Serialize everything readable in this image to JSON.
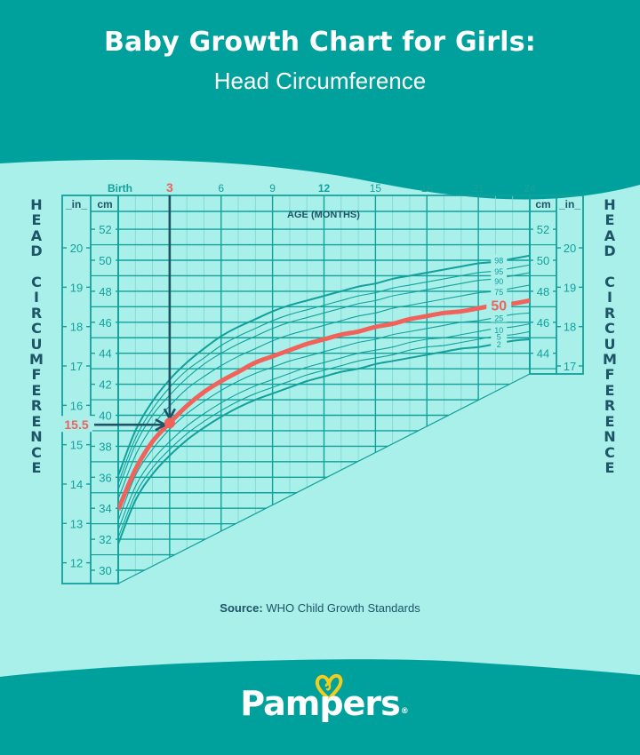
{
  "header": {
    "title": "Baby Growth Chart for Girls:",
    "subtitle": "Head Circumference"
  },
  "side_label": "HEAD CIRCUMFERENCE",
  "source": {
    "label": "Source:",
    "text": "WHO Child Growth Standards"
  },
  "brand": {
    "name": "Pampers",
    "registered": "®"
  },
  "colors": {
    "header_bg": "#00a19c",
    "chart_bg": "#a9efea",
    "grid": "#13a09b",
    "grid_minor": "#7fd6cf",
    "highlight": "#f0625a",
    "arrow": "#1d5466",
    "text_dark": "#1d5466",
    "heart": "#f3cc1c"
  },
  "chart_data": {
    "type": "line",
    "title": "Baby Growth Chart for Girls: Head Circumference",
    "xlabel": "AGE (MONTHS)",
    "ylabel": "HEAD CIRCUMFERENCE",
    "x_ticks": [
      {
        "value": 0,
        "label": "Birth"
      },
      {
        "value": 3,
        "label": "3",
        "highlight": true
      },
      {
        "value": 6,
        "label": "6"
      },
      {
        "value": 9,
        "label": "9"
      },
      {
        "value": 12,
        "label": "12",
        "bold": true
      },
      {
        "value": 15,
        "label": "15"
      },
      {
        "value": 18,
        "label": "18"
      },
      {
        "value": 21,
        "label": "21"
      },
      {
        "value": 24,
        "label": "24",
        "bold": true
      }
    ],
    "xlim": [
      0,
      24
    ],
    "ylim_cm": [
      30,
      53
    ],
    "y_ticks_cm": [
      30,
      32,
      34,
      36,
      38,
      40,
      42,
      44,
      46,
      48,
      50,
      52
    ],
    "y_ticks_cm_right": [
      44,
      46,
      48,
      50,
      52
    ],
    "y_ticks_in": [
      12,
      13,
      14,
      15,
      16,
      17,
      18,
      19,
      20
    ],
    "y_ticks_in_right": [
      17,
      18,
      19,
      20
    ],
    "unit_cm": "cm",
    "unit_in": "in",
    "grid": true,
    "x": [
      0,
      1,
      2,
      3,
      4,
      5,
      6,
      7,
      8,
      9,
      10,
      11,
      12,
      13,
      14,
      15,
      16,
      17,
      18,
      19,
      20,
      21,
      22,
      23,
      24
    ],
    "series": [
      {
        "name": "2",
        "values": [
          31.7,
          34.5,
          36.2,
          37.4,
          38.4,
          39.2,
          39.9,
          40.5,
          41.0,
          41.4,
          41.8,
          42.2,
          42.5,
          42.8,
          43.0,
          43.3,
          43.5,
          43.7,
          43.9,
          44.1,
          44.3,
          44.4,
          44.6,
          44.8,
          44.9
        ]
      },
      {
        "name": "5",
        "values": [
          32.1,
          34.9,
          36.6,
          37.8,
          38.8,
          39.6,
          40.3,
          40.9,
          41.4,
          41.8,
          42.2,
          42.6,
          42.9,
          43.2,
          43.5,
          43.7,
          43.9,
          44.2,
          44.4,
          44.5,
          44.7,
          44.9,
          45.1,
          45.2,
          45.4
        ]
      },
      {
        "name": "10",
        "values": [
          32.6,
          35.4,
          37.1,
          38.3,
          39.3,
          40.1,
          40.8,
          41.4,
          41.9,
          42.3,
          42.7,
          43.1,
          43.4,
          43.7,
          44.0,
          44.2,
          44.4,
          44.7,
          44.9,
          45.0,
          45.2,
          45.4,
          45.6,
          45.7,
          45.9
        ]
      },
      {
        "name": "25",
        "values": [
          33.2,
          36.1,
          37.8,
          39.1,
          40.1,
          40.9,
          41.6,
          42.2,
          42.7,
          43.1,
          43.5,
          43.8,
          44.1,
          44.4,
          44.7,
          44.9,
          45.2,
          45.4,
          45.6,
          45.8,
          46.0,
          46.1,
          46.3,
          46.5,
          46.6
        ]
      },
      {
        "name": "50",
        "values": [
          33.9,
          36.5,
          38.3,
          39.5,
          40.6,
          41.5,
          42.2,
          42.8,
          43.4,
          43.8,
          44.2,
          44.6,
          44.9,
          45.2,
          45.4,
          45.7,
          45.9,
          46.2,
          46.4,
          46.6,
          46.7,
          46.9,
          47.1,
          47.2,
          47.4
        ],
        "highlight": true
      },
      {
        "name": "75",
        "values": [
          34.6,
          37.4,
          39.3,
          40.6,
          41.7,
          42.5,
          43.2,
          43.8,
          44.3,
          44.8,
          45.2,
          45.5,
          45.8,
          46.1,
          46.4,
          46.6,
          46.9,
          47.1,
          47.3,
          47.5,
          47.7,
          47.9,
          48.0,
          48.2,
          48.4
        ]
      },
      {
        "name": "90",
        "values": [
          35.2,
          38.1,
          40.0,
          41.3,
          42.4,
          43.3,
          44.0,
          44.6,
          45.1,
          45.6,
          46.0,
          46.3,
          46.6,
          46.9,
          47.2,
          47.4,
          47.7,
          47.9,
          48.1,
          48.3,
          48.5,
          48.7,
          48.8,
          49.0,
          49.2
        ]
      },
      {
        "name": "95",
        "values": [
          35.6,
          38.5,
          40.4,
          41.8,
          42.9,
          43.7,
          44.5,
          45.1,
          45.6,
          46.1,
          46.5,
          46.8,
          47.1,
          47.4,
          47.7,
          47.9,
          48.2,
          48.4,
          48.6,
          48.8,
          49.0,
          49.2,
          49.3,
          49.5,
          49.7
        ]
      },
      {
        "name": "98",
        "values": [
          36.1,
          39.0,
          40.9,
          42.3,
          43.4,
          44.3,
          45.1,
          45.7,
          46.2,
          46.7,
          47.1,
          47.4,
          47.7,
          48.0,
          48.3,
          48.5,
          48.8,
          49.0,
          49.2,
          49.4,
          49.6,
          49.8,
          49.9,
          50.1,
          50.3
        ]
      }
    ],
    "annotations": [
      {
        "type": "vertical-arrow",
        "x": 3,
        "label": "3"
      },
      {
        "type": "horizontal-arrow",
        "y_in": 15.5,
        "label": "15.5"
      },
      {
        "type": "point",
        "x": 3,
        "y_cm": 39.5,
        "series": "50"
      },
      {
        "type": "series-label",
        "series": "50",
        "label": "50"
      }
    ],
    "percentile_labels": [
      "98",
      "95",
      "90",
      "75",
      "50",
      "25",
      "10",
      "5",
      "2"
    ]
  }
}
